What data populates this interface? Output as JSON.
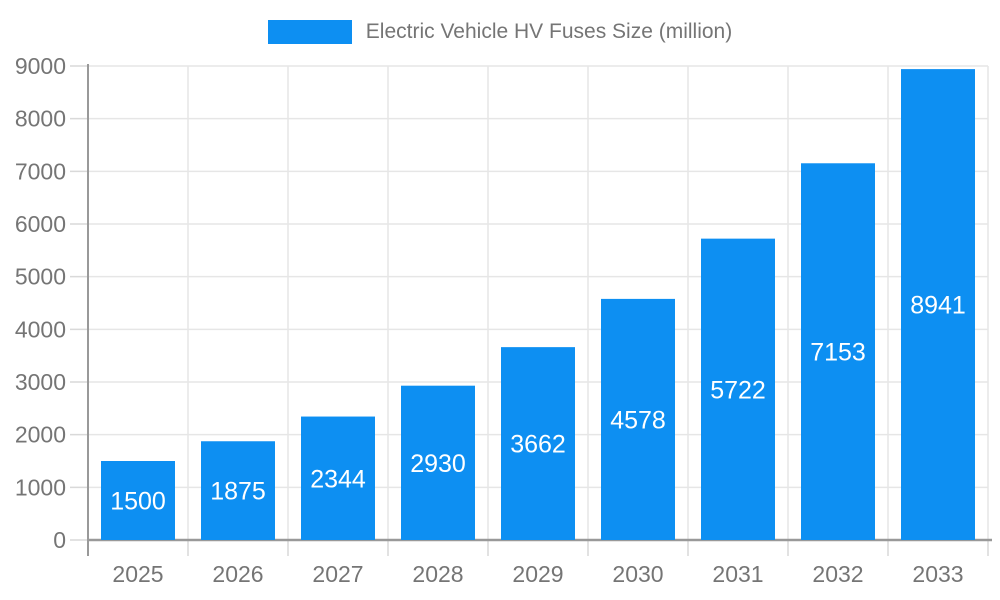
{
  "legend": {
    "label": "Electric Vehicle HV Fuses Size (million)"
  },
  "chart_data": {
    "type": "bar",
    "title": "Electric Vehicle HV Fuses Size (million)",
    "categories": [
      "2025",
      "2026",
      "2027",
      "2028",
      "2029",
      "2030",
      "2031",
      "2032",
      "2033"
    ],
    "series": [
      {
        "name": "Electric Vehicle HV Fuses Size (million)",
        "values": [
          1500,
          1875,
          2344,
          2930,
          3662,
          4578,
          5722,
          7153,
          8941
        ]
      }
    ],
    "bar_value_labels": [
      "1500",
      "1875",
      "2344",
      "2930",
      "3662",
      "4578",
      "5722",
      "7153",
      "8941"
    ],
    "y_ticks": [
      0,
      1000,
      2000,
      3000,
      4000,
      5000,
      6000,
      7000,
      8000,
      9000
    ],
    "ylim": [
      0,
      9000
    ],
    "xlabel": "",
    "ylabel": "",
    "grid": true,
    "legend_position": "top",
    "colors": {
      "bar": "#0D8FF2",
      "bar_label_text": "#FFFFFF",
      "axis_line": "#999999",
      "tick_mark": "#D9D9D9",
      "grid_line": "#E6E6E6",
      "axis_text": "#757575",
      "legend_text": "#757575",
      "background": "#FFFFFF"
    }
  }
}
